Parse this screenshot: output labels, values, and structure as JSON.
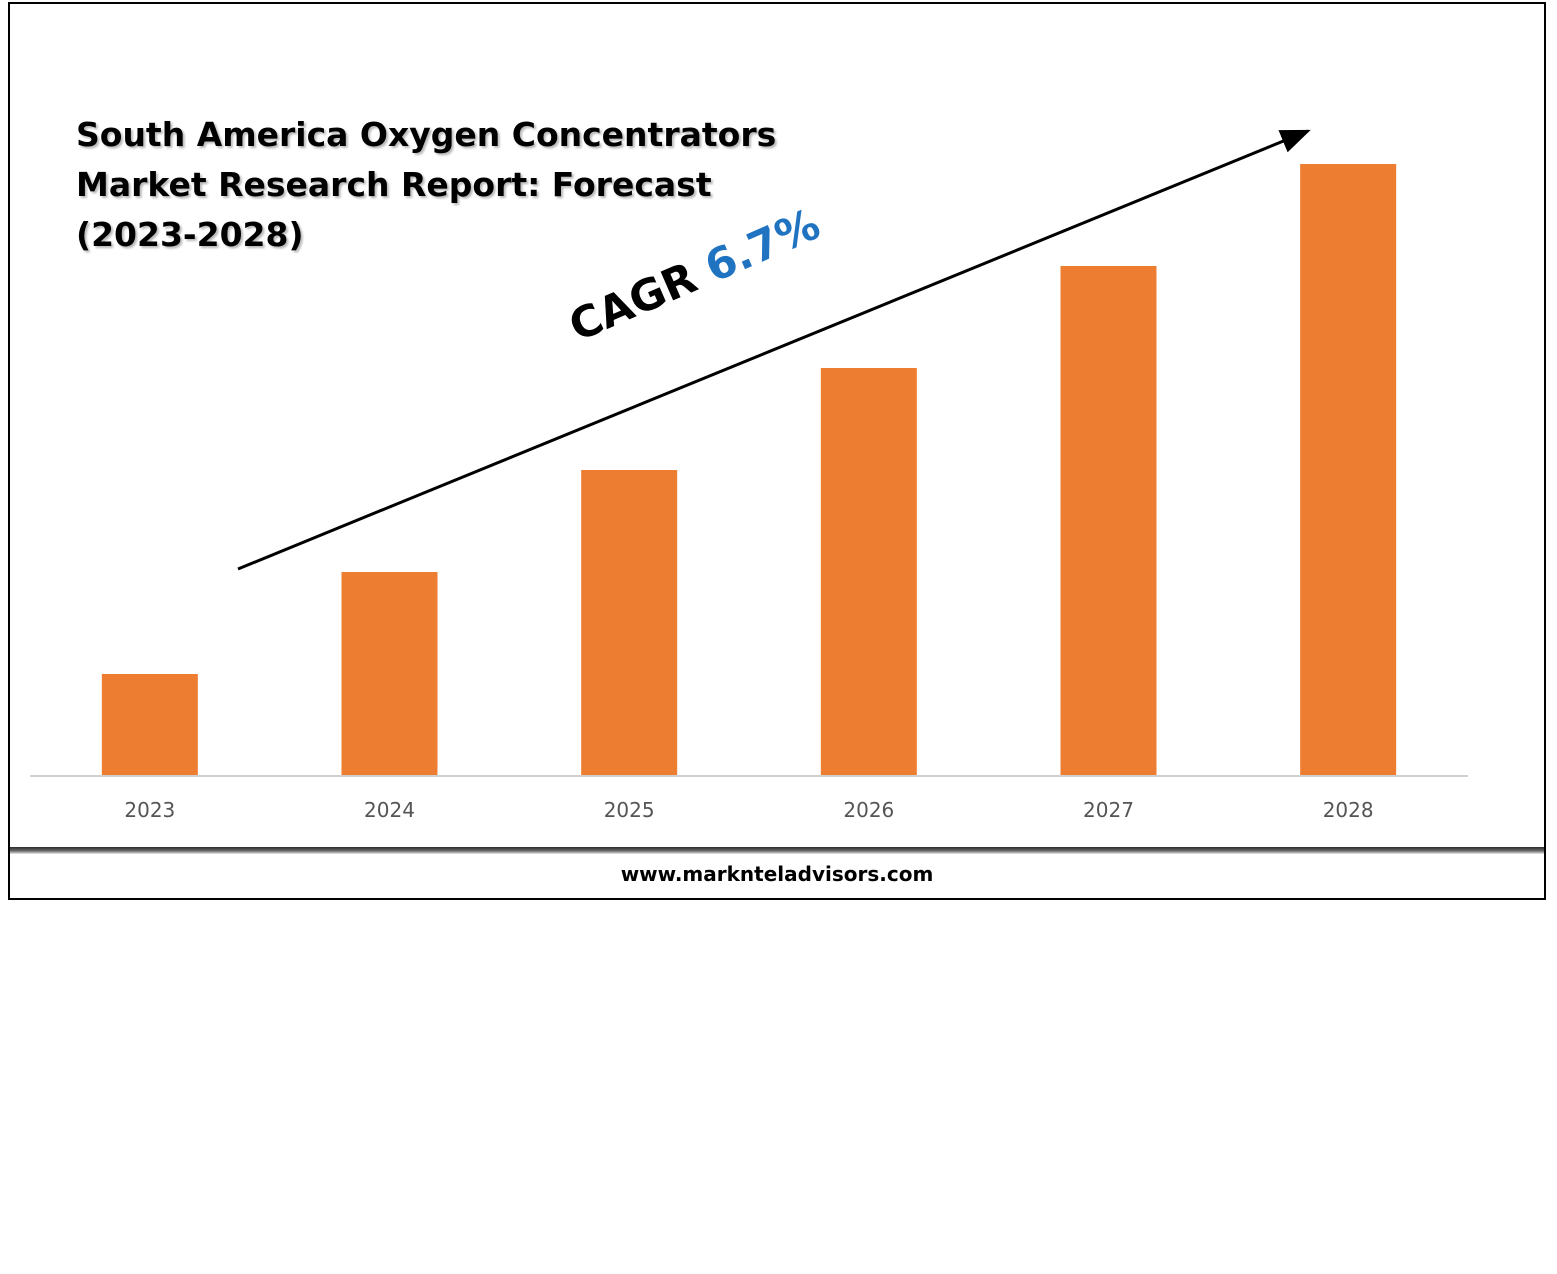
{
  "chart_data": {
    "type": "bar",
    "title": "South America Oxygen Concentrators\nMarket Research Report: Forecast\n(2023-2028)",
    "categories": [
      "2023",
      "2024",
      "2025",
      "2026",
      "2027",
      "2028"
    ],
    "values": [
      1,
      2,
      3,
      4,
      5,
      6
    ],
    "ylim": [
      0,
      6
    ],
    "bar_color": "#ed7d31",
    "grid": false,
    "annotation": {
      "label": "CAGR",
      "value": "6.7%",
      "value_color": "#1f73c0"
    }
  },
  "source": "www.marknteladvisors.com"
}
